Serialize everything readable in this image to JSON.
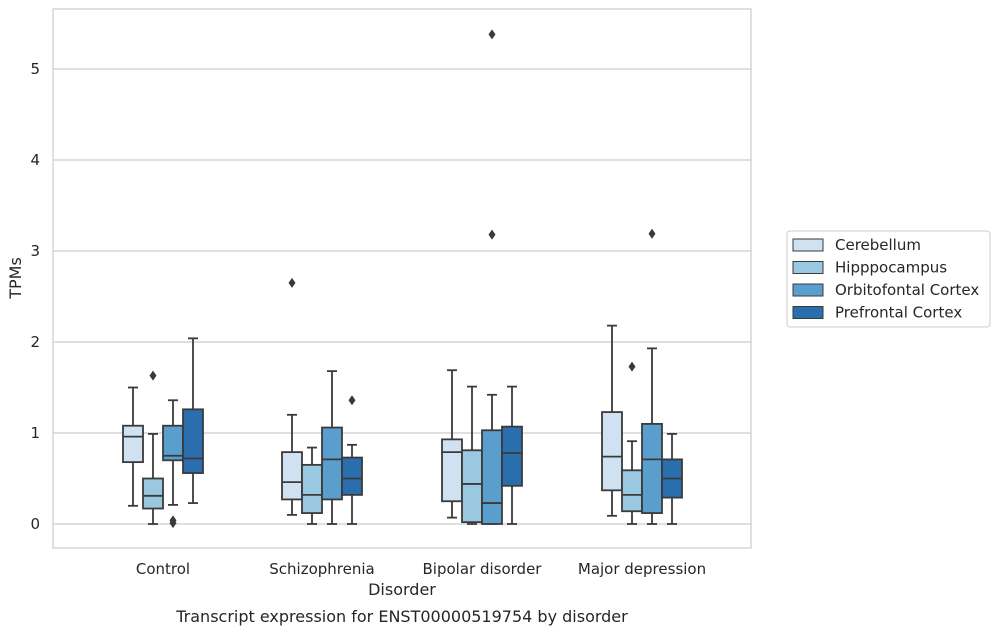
{
  "chart_data": {
    "type": "boxplot",
    "caption": "Transcript expression for ENST00000519754 by disorder",
    "xlabel": "Disorder",
    "ylabel": "TPMs",
    "ylim": [
      -0.25,
      5.65
    ],
    "yticks": [
      0,
      1,
      2,
      3,
      4,
      5
    ],
    "grid": "horizontal",
    "legend_position": "right",
    "categories": [
      "Control",
      "Schizophrenia",
      "Bipolar disorder",
      "Major depression"
    ],
    "series": [
      {
        "name": "Cerebellum",
        "color": "#d0e1f2",
        "boxes": [
          {
            "whisker_low": 0.2,
            "q1": 0.68,
            "median": 0.96,
            "q3": 1.08,
            "whisker_high": 1.5,
            "outliers": []
          },
          {
            "whisker_low": 0.1,
            "q1": 0.27,
            "median": 0.46,
            "q3": 0.79,
            "whisker_high": 1.2,
            "outliers": [
              2.65
            ]
          },
          {
            "whisker_low": 0.07,
            "q1": 0.25,
            "median": 0.79,
            "q3": 0.93,
            "whisker_high": 1.69,
            "outliers": []
          },
          {
            "whisker_low": 0.09,
            "q1": 0.37,
            "median": 0.74,
            "q3": 1.23,
            "whisker_high": 2.18,
            "outliers": []
          }
        ]
      },
      {
        "name": "Hipppocampus",
        "color": "#9ac8e0",
        "boxes": [
          {
            "whisker_low": 0.0,
            "q1": 0.17,
            "median": 0.31,
            "q3": 0.5,
            "whisker_high": 0.99,
            "outliers": [
              1.63
            ]
          },
          {
            "whisker_low": 0.0,
            "q1": 0.12,
            "median": 0.32,
            "q3": 0.65,
            "whisker_high": 0.84,
            "outliers": []
          },
          {
            "whisker_low": 0.0,
            "q1": 0.02,
            "median": 0.44,
            "q3": 0.81,
            "whisker_high": 1.51,
            "outliers": []
          },
          {
            "whisker_low": 0.0,
            "q1": 0.14,
            "median": 0.32,
            "q3": 0.59,
            "whisker_high": 0.91,
            "outliers": [
              1.73
            ]
          }
        ]
      },
      {
        "name": "Orbitofontal Cortex",
        "color": "#5a9ecd",
        "boxes": [
          {
            "whisker_low": 0.21,
            "q1": 0.7,
            "median": 0.75,
            "q3": 1.08,
            "whisker_high": 1.36,
            "outliers": [
              0.04,
              0.01
            ]
          },
          {
            "whisker_low": 0.0,
            "q1": 0.27,
            "median": 0.71,
            "q3": 1.06,
            "whisker_high": 1.68,
            "outliers": []
          },
          {
            "whisker_low": 0.0,
            "q1": 0.0,
            "median": 0.23,
            "q3": 1.03,
            "whisker_high": 1.42,
            "outliers": [
              3.18,
              5.38
            ]
          },
          {
            "whisker_low": 0.0,
            "q1": 0.12,
            "median": 0.71,
            "q3": 1.1,
            "whisker_high": 1.93,
            "outliers": [
              3.19
            ]
          }
        ]
      },
      {
        "name": "Prefrontal Cortex",
        "color": "#2b6ead",
        "boxes": [
          {
            "whisker_low": 0.23,
            "q1": 0.56,
            "median": 0.72,
            "q3": 1.26,
            "whisker_high": 2.04,
            "outliers": []
          },
          {
            "whisker_low": 0.0,
            "q1": 0.32,
            "median": 0.5,
            "q3": 0.73,
            "whisker_high": 0.87,
            "outliers": [
              1.36
            ]
          },
          {
            "whisker_low": 0.0,
            "q1": 0.42,
            "median": 0.78,
            "q3": 1.07,
            "whisker_high": 1.51,
            "outliers": []
          },
          {
            "whisker_low": 0.0,
            "q1": 0.29,
            "median": 0.5,
            "q3": 0.71,
            "whisker_high": 0.99,
            "outliers": []
          }
        ]
      }
    ]
  }
}
